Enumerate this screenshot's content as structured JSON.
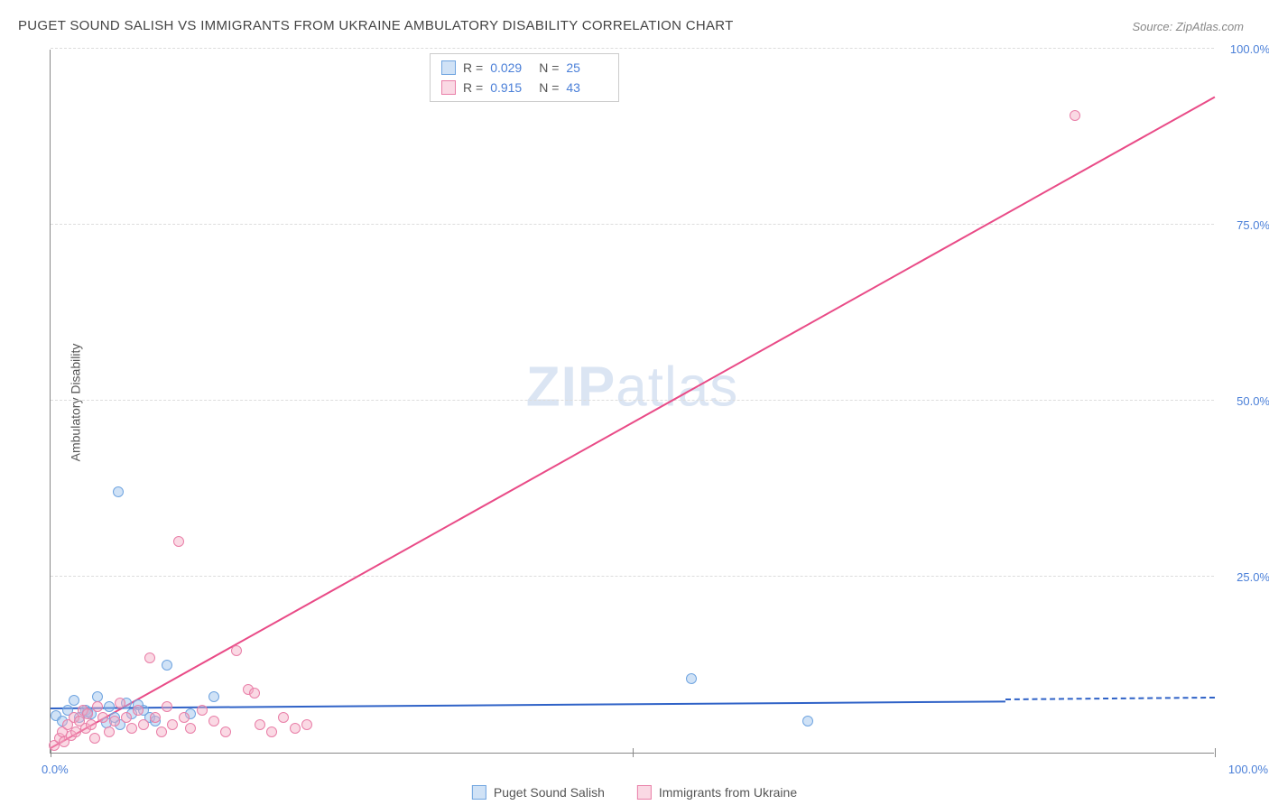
{
  "title": "PUGET SOUND SALISH VS IMMIGRANTS FROM UKRAINE AMBULATORY DISABILITY CORRELATION CHART",
  "source": "Source: ZipAtlas.com",
  "ylabel": "Ambulatory Disability",
  "watermark_bold": "ZIP",
  "watermark_rest": "atlas",
  "chart": {
    "type": "scatter",
    "xlim": [
      0,
      100
    ],
    "ylim": [
      0,
      100
    ],
    "y_ticks": [
      25,
      50,
      75,
      100
    ],
    "y_tick_labels": [
      "25.0%",
      "50.0%",
      "75.0%",
      "100.0%"
    ],
    "x_tick_positions": [
      0,
      50,
      100
    ],
    "x_axis_labels": {
      "left": "0.0%",
      "right": "100.0%"
    },
    "background_color": "#ffffff",
    "grid_color": "#dddddd",
    "axis_color": "#888888",
    "tick_label_color": "#4a7fd8",
    "marker_radius": 6,
    "series": [
      {
        "name": "Puget Sound Salish",
        "color_fill": "rgba(150,190,235,0.45)",
        "color_stroke": "#6fa4e0",
        "line_color": "#2f62c7",
        "R": "0.029",
        "N": "25",
        "regression": {
          "x1": 0,
          "y1": 6.2,
          "x2": 82,
          "y2": 7.4,
          "dash_from_x": 82,
          "dash_to_x": 100
        },
        "points": [
          [
            0.5,
            5.2
          ],
          [
            1.0,
            4.5
          ],
          [
            1.5,
            6.0
          ],
          [
            2.0,
            7.5
          ],
          [
            2.5,
            5.0
          ],
          [
            3.0,
            6.0
          ],
          [
            3.5,
            5.5
          ],
          [
            4.0,
            8.0
          ],
          [
            5.0,
            6.5
          ],
          [
            5.5,
            5.0
          ],
          [
            6.0,
            4.0
          ],
          [
            6.5,
            7.0
          ],
          [
            7.0,
            5.5
          ],
          [
            8.0,
            6.0
          ],
          [
            8.5,
            5.0
          ],
          [
            9.0,
            4.5
          ],
          [
            10.0,
            12.5
          ],
          [
            12.0,
            5.5
          ],
          [
            14.0,
            8.0
          ],
          [
            5.8,
            37.0
          ],
          [
            55.0,
            10.5
          ],
          [
            65.0,
            4.5
          ],
          [
            3.2,
            5.8
          ],
          [
            4.8,
            4.2
          ],
          [
            7.5,
            6.8
          ]
        ]
      },
      {
        "name": "Immigrants from Ukraine",
        "color_fill": "rgba(245,170,195,0.45)",
        "color_stroke": "#e97fa8",
        "line_color": "#e94b87",
        "R": "0.915",
        "N": "43",
        "regression": {
          "x1": 0,
          "y1": 0.5,
          "x2": 100,
          "y2": 93.0
        },
        "points": [
          [
            0.3,
            1.0
          ],
          [
            0.8,
            2.0
          ],
          [
            1.0,
            3.0
          ],
          [
            1.2,
            1.5
          ],
          [
            1.5,
            4.0
          ],
          [
            1.8,
            2.5
          ],
          [
            2.0,
            5.0
          ],
          [
            2.2,
            3.0
          ],
          [
            2.5,
            4.5
          ],
          [
            2.8,
            6.0
          ],
          [
            3.0,
            3.5
          ],
          [
            3.2,
            5.5
          ],
          [
            3.5,
            4.0
          ],
          [
            3.8,
            2.0
          ],
          [
            4.0,
            6.5
          ],
          [
            4.5,
            5.0
          ],
          [
            5.0,
            3.0
          ],
          [
            5.5,
            4.5
          ],
          [
            6.0,
            7.0
          ],
          [
            6.5,
            5.0
          ],
          [
            7.0,
            3.5
          ],
          [
            7.5,
            6.0
          ],
          [
            8.0,
            4.0
          ],
          [
            8.5,
            13.5
          ],
          [
            9.0,
            5.0
          ],
          [
            9.5,
            3.0
          ],
          [
            10.0,
            6.5
          ],
          [
            10.5,
            4.0
          ],
          [
            11.0,
            30.0
          ],
          [
            11.5,
            5.0
          ],
          [
            12.0,
            3.5
          ],
          [
            13.0,
            6.0
          ],
          [
            14.0,
            4.5
          ],
          [
            15.0,
            3.0
          ],
          [
            16.0,
            14.5
          ],
          [
            17.0,
            9.0
          ],
          [
            18.0,
            4.0
          ],
          [
            19.0,
            3.0
          ],
          [
            20.0,
            5.0
          ],
          [
            21.0,
            3.5
          ],
          [
            22.0,
            4.0
          ],
          [
            17.5,
            8.5
          ],
          [
            88.0,
            90.5
          ]
        ]
      }
    ]
  },
  "legend": {
    "series1": "Puget Sound Salish",
    "series2": "Immigrants from Ukraine"
  },
  "stats_labels": {
    "R": "R =",
    "N": "N ="
  }
}
